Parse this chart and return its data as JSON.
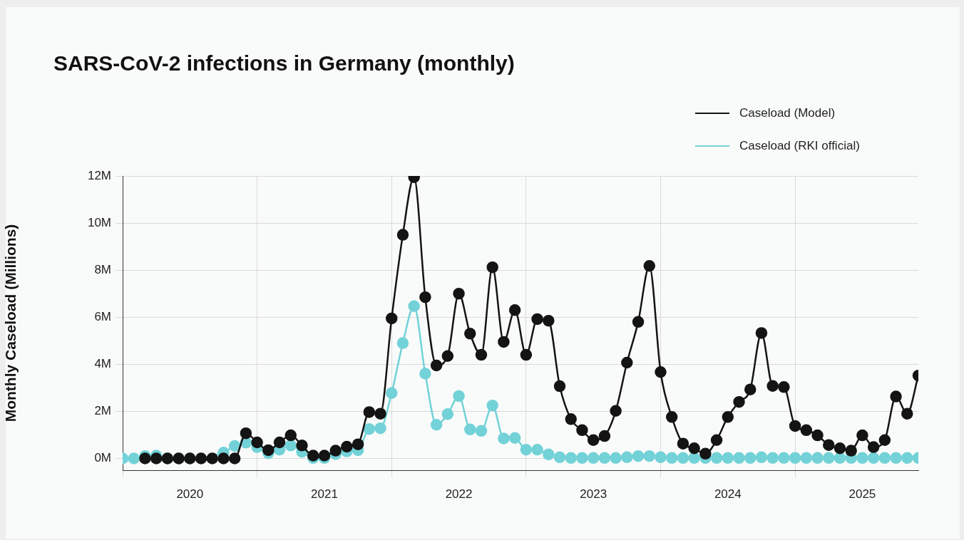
{
  "chart_data": {
    "type": "line",
    "title": "SARS-CoV-2 infections in Germany (monthly)",
    "ylabel": "Monthly Caseload (Millions)",
    "x": [
      "2020-01",
      "2020-02",
      "2020-03",
      "2020-04",
      "2020-05",
      "2020-06",
      "2020-07",
      "2020-08",
      "2020-09",
      "2020-10",
      "2020-11",
      "2020-12",
      "2021-01",
      "2021-02",
      "2021-03",
      "2021-04",
      "2021-05",
      "2021-06",
      "2021-07",
      "2021-08",
      "2021-09",
      "2021-10",
      "2021-11",
      "2021-12",
      "2022-01",
      "2022-02",
      "2022-03",
      "2022-04",
      "2022-05",
      "2022-06",
      "2022-07",
      "2022-08",
      "2022-09",
      "2022-10",
      "2022-11",
      "2022-12",
      "2023-01",
      "2023-02",
      "2023-03",
      "2023-04",
      "2023-05",
      "2023-06",
      "2023-07",
      "2023-08",
      "2023-09",
      "2023-10",
      "2023-11",
      "2023-12",
      "2024-01",
      "2024-02",
      "2024-03",
      "2024-04",
      "2024-05",
      "2024-06",
      "2024-07",
      "2024-08",
      "2024-09",
      "2024-10",
      "2024-11",
      "2024-12",
      "2025-01",
      "2025-02",
      "2025-03",
      "2025-04",
      "2025-05",
      "2025-06",
      "2025-07",
      "2025-08",
      "2025-09",
      "2025-10",
      "2025-11",
      "2025-12"
    ],
    "series": [
      {
        "name": "Caseload (Model)",
        "color": "#141414",
        "values": [
          null,
          null,
          0,
          0,
          0,
          0,
          0,
          0,
          0,
          0,
          0,
          1.07,
          0.68,
          0.35,
          0.68,
          0.98,
          0.55,
          0.12,
          0.12,
          0.33,
          0.5,
          0.6,
          1.97,
          1.9,
          5.95,
          9.5,
          11.95,
          6.85,
          3.95,
          4.35,
          7.0,
          5.3,
          4.4,
          8.12,
          4.95,
          6.3,
          4.4,
          5.92,
          5.85,
          3.07,
          1.67,
          1.2,
          0.78,
          0.95,
          2.02,
          4.07,
          5.8,
          8.18,
          3.67,
          1.76,
          0.63,
          0.43,
          0.2,
          0.78,
          1.76,
          2.4,
          2.93,
          5.33,
          3.08,
          3.03,
          1.38,
          1.2,
          0.98,
          0.57,
          0.43,
          0.33,
          0.98,
          0.48,
          0.78,
          2.63,
          1.9,
          3.52
        ]
      },
      {
        "name": "Caseload (RKI official)",
        "color": "#73d2d8",
        "values": [
          0,
          0,
          0.1,
          0.12,
          0,
          0,
          0,
          null,
          null,
          0.25,
          0.53,
          0.67,
          0.48,
          0.22,
          0.37,
          0.55,
          0.28,
          0.02,
          0.02,
          0.18,
          0.3,
          0.35,
          1.25,
          1.28,
          2.78,
          4.9,
          6.47,
          3.6,
          1.43,
          1.88,
          2.65,
          1.23,
          1.17,
          2.25,
          0.85,
          0.87,
          0.37,
          0.37,
          0.17,
          0.05,
          0.02,
          0.02,
          0.02,
          0.02,
          0.02,
          0.05,
          0.1,
          0.1,
          0.05,
          0.02,
          0.02,
          0.02,
          0.02,
          0.02,
          0.02,
          0.02,
          0.02,
          0.05,
          0.02,
          0.02,
          0.02,
          0.02,
          0.02,
          0.02,
          0.02,
          0.02,
          0.02,
          0.02,
          0.02,
          0.02,
          0.02,
          0.02
        ]
      }
    ],
    "xlim": [
      "2020-01",
      "2025-12"
    ],
    "xticks": [
      {
        "value": "2020-01",
        "label": null
      },
      {
        "value": "2020-07",
        "label": "2020"
      },
      {
        "value": "2021-01",
        "label": null
      },
      {
        "value": "2021-07",
        "label": "2021"
      },
      {
        "value": "2022-01",
        "label": null
      },
      {
        "value": "2022-07",
        "label": "2022"
      },
      {
        "value": "2023-01",
        "label": null
      },
      {
        "value": "2023-07",
        "label": "2023"
      },
      {
        "value": "2024-01",
        "label": null
      },
      {
        "value": "2024-07",
        "label": "2024"
      },
      {
        "value": "2025-01",
        "label": null
      },
      {
        "value": "2025-07",
        "label": "2025"
      }
    ],
    "ylim": [
      -0.5,
      12
    ],
    "yticks": [
      {
        "value": 0,
        "label": "0M"
      },
      {
        "value": 2,
        "label": "2M"
      },
      {
        "value": 4,
        "label": "4M"
      },
      {
        "value": 6,
        "label": "6M"
      },
      {
        "value": 8,
        "label": "8M"
      },
      {
        "value": 10,
        "label": "10M"
      },
      {
        "value": 12,
        "label": "12M"
      }
    ],
    "grid": true,
    "legend": "top right",
    "marker": "circle",
    "line_style": "solid"
  }
}
